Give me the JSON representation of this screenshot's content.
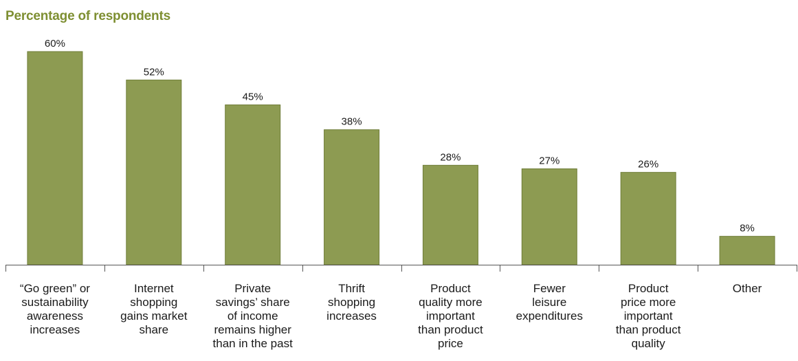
{
  "colors": {
    "bar": "#8d9b52",
    "bar_edge": "#6f7d38",
    "title": "#7e8f32",
    "axis": "#555555"
  },
  "chart_data": {
    "type": "bar",
    "title": "Percentage of respondents",
    "xlabel": "",
    "ylabel": "",
    "ylim": [
      0,
      60
    ],
    "grid": false,
    "legend": "none",
    "categories": [
      [
        "“Go green” or",
        "sustainability",
        "awareness",
        "increases"
      ],
      [
        "Internet",
        "shopping",
        "gains market",
        "share"
      ],
      [
        "Private",
        "savings’ share",
        "of income",
        "remains higher",
        "than in the past"
      ],
      [
        "Thrift",
        "shopping",
        "increases"
      ],
      [
        "Product",
        "quality more",
        "important",
        "than product",
        "price"
      ],
      [
        "Fewer",
        "leisure",
        "expenditures"
      ],
      [
        "Product",
        "price more",
        "important",
        "than product",
        "quality"
      ],
      [
        "Other"
      ]
    ],
    "values": [
      60,
      52,
      45,
      38,
      28,
      27,
      26,
      8
    ],
    "value_labels": [
      "60%",
      "52%",
      "45%",
      "38%",
      "28%",
      "27%",
      "26%",
      "8%"
    ]
  }
}
